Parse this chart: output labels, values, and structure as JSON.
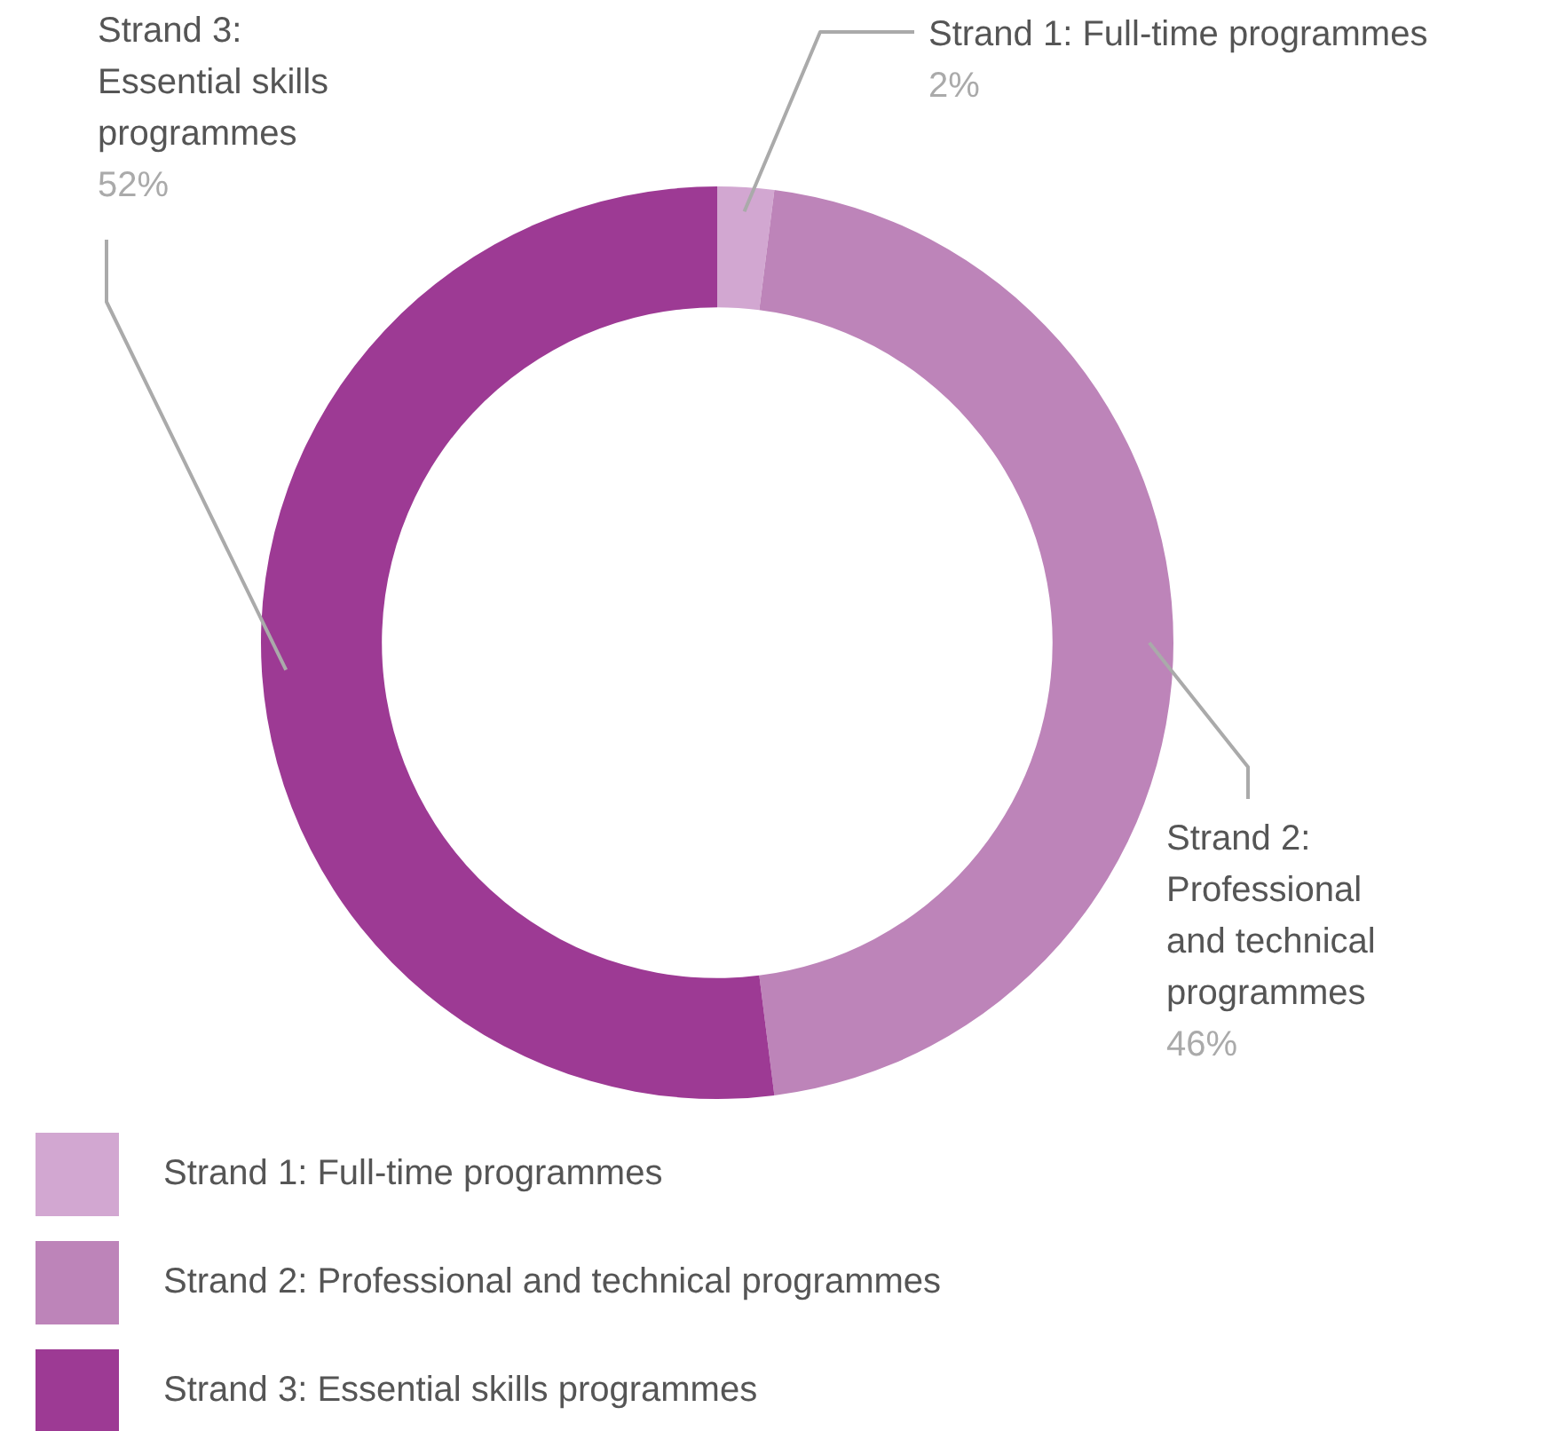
{
  "chart_data": {
    "type": "donut",
    "categories": [
      "Strand 1: Full-time programmes",
      "Strand 2: Professional and technical programmes",
      "Strand 3: Essential skills programmes"
    ],
    "values": [
      2,
      46,
      52
    ],
    "value_labels": [
      "2%",
      "46%",
      "52%"
    ],
    "colors": [
      "#d2a7d1",
      "#bd84b9",
      "#9d3a94"
    ],
    "legend": "bottom left"
  }
}
